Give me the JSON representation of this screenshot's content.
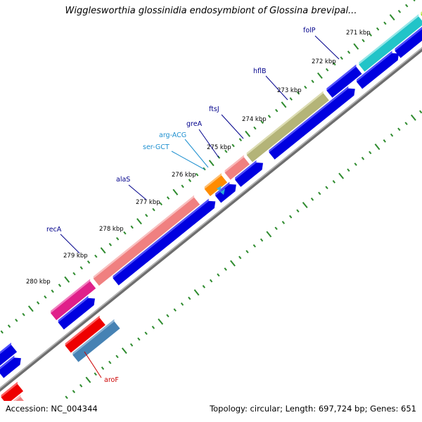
{
  "title": "Wigglesworthia glossinidia endosymbiont of Glossina brevipal...",
  "footer": {
    "accession_label": "Accession:",
    "accession": "NC_004344",
    "topology_text": "Topology: circular; Length: 697,724 bp; Genes: 651"
  },
  "colors": {
    "backbone": "#808080",
    "tick": "#2e8b2e",
    "cds": "#0000e0",
    "gene_label": "#00008b",
    "trna_label": "#1e90d0",
    "red_label": "#cc0000"
  },
  "scale_labels": [
    "271 kbp",
    "272 kbp",
    "273 kbp",
    "274 kbp",
    "275 kbp",
    "276 kbp",
    "277 kbp",
    "278 kbp",
    "279 kbp",
    "280 kbp"
  ],
  "gene_labels": [
    {
      "text": "folP",
      "kind": "gene"
    },
    {
      "text": "hflB",
      "kind": "gene"
    },
    {
      "text": "ftsJ",
      "kind": "gene"
    },
    {
      "text": "greA",
      "kind": "gene"
    },
    {
      "text": "arg-ACG",
      "kind": "trna"
    },
    {
      "text": "ser-GCT",
      "kind": "trna"
    },
    {
      "text": "alaS",
      "kind": "gene"
    },
    {
      "text": "recA",
      "kind": "gene"
    },
    {
      "text": "aroF",
      "kind": "red"
    }
  ]
}
